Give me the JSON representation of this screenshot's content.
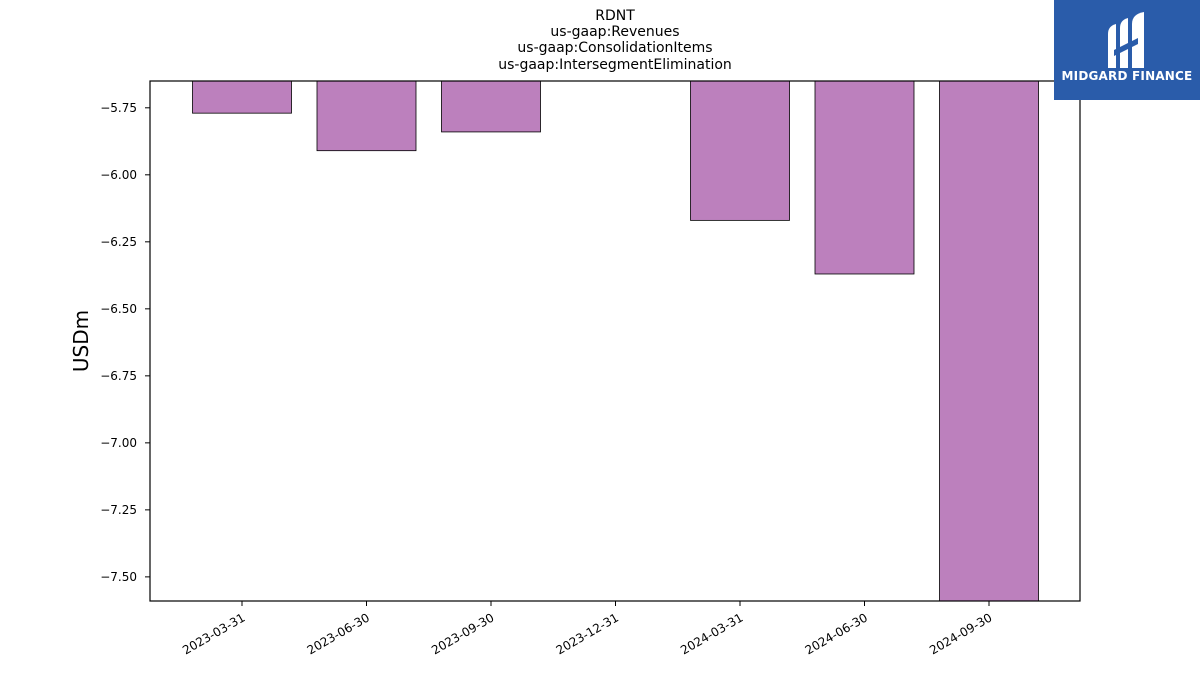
{
  "brand": {
    "name": "MIDGARD FINANCE",
    "bg_color": "#2a5caa"
  },
  "chart_data": {
    "type": "bar",
    "title_lines": [
      "RDNT",
      "us-gaap:Revenues",
      "us-gaap:ConsolidationItems",
      "us-gaap:IntersegmentElimination"
    ],
    "ylabel": "USDm",
    "xlabel": "",
    "categories": [
      "2023-03-31",
      "2023-06-30",
      "2023-09-30",
      "2023-12-31",
      "2024-03-31",
      "2024-06-30",
      "2024-09-30"
    ],
    "values": [
      -5.77,
      -5.91,
      -5.84,
      null,
      -6.17,
      -6.37,
      -7.6
    ],
    "ylim": [
      -7.59,
      -5.65
    ],
    "yticks": [
      -7.5,
      -7.25,
      -7.0,
      -6.75,
      -6.5,
      -6.25,
      -6.0,
      -5.75
    ],
    "ytick_labels": [
      "−7.50",
      "−7.25",
      "−7.00",
      "−6.75",
      "−6.50",
      "−6.25",
      "−6.00",
      "−5.75"
    ],
    "bar_color": "#bc80bd",
    "bar_edge_color": "#000000",
    "grid": false,
    "legend": "none"
  }
}
